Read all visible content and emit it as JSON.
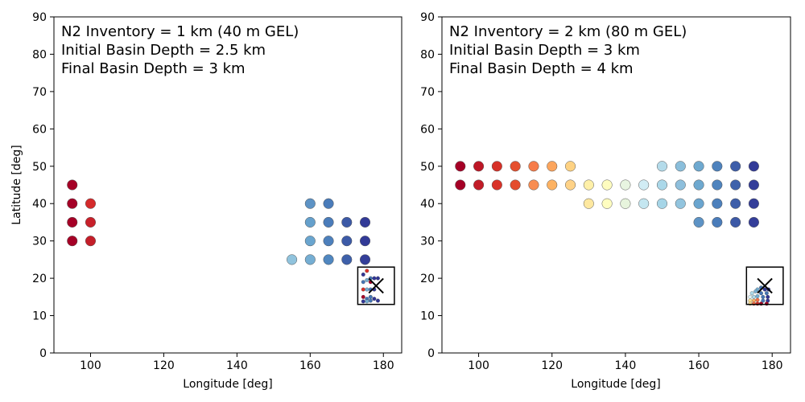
{
  "figure": {
    "title": ""
  },
  "chart_data": [
    {
      "type": "scatter",
      "title": "",
      "annotation": [
        "N2 Inventory = 1 km (40 m GEL)",
        "Initial Basin Depth = 2.5 km",
        "Final Basin Depth = 3 km"
      ],
      "xlabel": "Longitude [deg]",
      "ylabel": "Latitude [deg]",
      "xlim": [
        90,
        185
      ],
      "ylim": [
        0,
        90
      ],
      "xticks": [
        100,
        120,
        140,
        160,
        180
      ],
      "yticks": [
        0,
        10,
        20,
        30,
        40,
        50,
        60,
        70,
        80,
        90
      ],
      "marker_x": {
        "x": 178,
        "y": 18
      },
      "inset_box": {
        "x0": 173,
        "x1": 183,
        "y0": 13,
        "y1": 23
      },
      "points": [
        {
          "x": 95,
          "y": 45,
          "c": "#a50026"
        },
        {
          "x": 95,
          "y": 40,
          "c": "#a50026"
        },
        {
          "x": 95,
          "y": 35,
          "c": "#a50026"
        },
        {
          "x": 95,
          "y": 30,
          "c": "#a50026"
        },
        {
          "x": 100,
          "y": 40,
          "c": "#d42a2b"
        },
        {
          "x": 100,
          "y": 35,
          "c": "#c8202a"
        },
        {
          "x": 100,
          "y": 30,
          "c": "#c41e29"
        },
        {
          "x": 155,
          "y": 25,
          "c": "#90c3dd"
        },
        {
          "x": 160,
          "y": 40,
          "c": "#5d93c5"
        },
        {
          "x": 160,
          "y": 35,
          "c": "#65a0cc"
        },
        {
          "x": 160,
          "y": 30,
          "c": "#6aa5cf"
        },
        {
          "x": 160,
          "y": 25,
          "c": "#75aed3"
        },
        {
          "x": 165,
          "y": 40,
          "c": "#4a7cba"
        },
        {
          "x": 165,
          "y": 35,
          "c": "#4a7cba"
        },
        {
          "x": 165,
          "y": 30,
          "c": "#4d80bc"
        },
        {
          "x": 165,
          "y": 25,
          "c": "#5087c0"
        },
        {
          "x": 170,
          "y": 35,
          "c": "#3c59a6"
        },
        {
          "x": 170,
          "y": 30,
          "c": "#3c5aa7"
        },
        {
          "x": 170,
          "y": 25,
          "c": "#3e60aa"
        },
        {
          "x": 175,
          "y": 35,
          "c": "#323a97"
        },
        {
          "x": 175,
          "y": 30,
          "c": "#323a97"
        },
        {
          "x": 175,
          "y": 25,
          "c": "#343e99"
        }
      ],
      "small_points": [
        {
          "x": 174.5,
          "y": 21,
          "c": "#313695"
        },
        {
          "x": 175.5,
          "y": 22,
          "c": "#d73027"
        },
        {
          "x": 176.5,
          "y": 20,
          "c": "#4575b4"
        },
        {
          "x": 177.5,
          "y": 20,
          "c": "#313695"
        },
        {
          "x": 178.5,
          "y": 20,
          "c": "#313695"
        },
        {
          "x": 174.5,
          "y": 19,
          "c": "#4575b4"
        },
        {
          "x": 175.5,
          "y": 19.5,
          "c": "#74add1"
        },
        {
          "x": 176.5,
          "y": 19,
          "c": "#a50026"
        },
        {
          "x": 174.5,
          "y": 17,
          "c": "#d73027"
        },
        {
          "x": 175.5,
          "y": 17,
          "c": "#74add1"
        },
        {
          "x": 176.5,
          "y": 17,
          "c": "#4575b4"
        },
        {
          "x": 177.5,
          "y": 17,
          "c": "#313695"
        },
        {
          "x": 174.5,
          "y": 15,
          "c": "#a50026"
        },
        {
          "x": 175.5,
          "y": 14.5,
          "c": "#4575b4"
        },
        {
          "x": 176.5,
          "y": 15,
          "c": "#4575b4"
        },
        {
          "x": 177.5,
          "y": 14.5,
          "c": "#313695"
        },
        {
          "x": 174.5,
          "y": 13.8,
          "c": "#313695"
        },
        {
          "x": 175.5,
          "y": 13.8,
          "c": "#74add1"
        },
        {
          "x": 176.5,
          "y": 14,
          "c": "#4575b4"
        },
        {
          "x": 178.5,
          "y": 14,
          "c": "#313695"
        }
      ]
    },
    {
      "type": "scatter",
      "title": "",
      "annotation": [
        "N2 Inventory = 2 km (80 m GEL)",
        "Initial Basin Depth = 3 km",
        "Final Basin Depth = 4 km"
      ],
      "xlabel": "Longitude [deg]",
      "ylabel": "",
      "xlim": [
        90,
        185
      ],
      "ylim": [
        0,
        90
      ],
      "xticks": [
        100,
        120,
        140,
        160,
        180
      ],
      "yticks": [
        0,
        10,
        20,
        30,
        40,
        50,
        60,
        70,
        80,
        90
      ],
      "marker_x": {
        "x": 178,
        "y": 18
      },
      "inset_box": {
        "x0": 173,
        "x1": 183,
        "y0": 13,
        "y1": 23
      },
      "points": [
        {
          "x": 95,
          "y": 50,
          "c": "#a50026"
        },
        {
          "x": 100,
          "y": 50,
          "c": "#bd1726"
        },
        {
          "x": 105,
          "y": 50,
          "c": "#d73027"
        },
        {
          "x": 110,
          "y": 50,
          "c": "#e5502f"
        },
        {
          "x": 115,
          "y": 50,
          "c": "#f67c4a"
        },
        {
          "x": 120,
          "y": 50,
          "c": "#fca55d"
        },
        {
          "x": 125,
          "y": 50,
          "c": "#fed283"
        },
        {
          "x": 150,
          "y": 50,
          "c": "#b4dbea"
        },
        {
          "x": 155,
          "y": 50,
          "c": "#8abedb"
        },
        {
          "x": 160,
          "y": 50,
          "c": "#6ea9d0"
        },
        {
          "x": 165,
          "y": 50,
          "c": "#4e82bd"
        },
        {
          "x": 170,
          "y": 50,
          "c": "#3e5ea9"
        },
        {
          "x": 175,
          "y": 50,
          "c": "#323a97"
        },
        {
          "x": 95,
          "y": 45,
          "c": "#a50026"
        },
        {
          "x": 100,
          "y": 45,
          "c": "#c21c27"
        },
        {
          "x": 105,
          "y": 45,
          "c": "#d93228"
        },
        {
          "x": 110,
          "y": 45,
          "c": "#e44d2e"
        },
        {
          "x": 115,
          "y": 45,
          "c": "#f88d52"
        },
        {
          "x": 120,
          "y": 45,
          "c": "#fdb262"
        },
        {
          "x": 125,
          "y": 45,
          "c": "#fed287"
        },
        {
          "x": 130,
          "y": 45,
          "c": "#fff0a8"
        },
        {
          "x": 135,
          "y": 45,
          "c": "#fefcbf"
        },
        {
          "x": 140,
          "y": 45,
          "c": "#e8f5e1"
        },
        {
          "x": 145,
          "y": 45,
          "c": "#d1ecf4"
        },
        {
          "x": 150,
          "y": 45,
          "c": "#abd8e9"
        },
        {
          "x": 155,
          "y": 45,
          "c": "#8ebfdc"
        },
        {
          "x": 160,
          "y": 45,
          "c": "#6ea9d0"
        },
        {
          "x": 165,
          "y": 45,
          "c": "#4f84be"
        },
        {
          "x": 170,
          "y": 45,
          "c": "#3f62ab"
        },
        {
          "x": 175,
          "y": 45,
          "c": "#343e99"
        },
        {
          "x": 130,
          "y": 40,
          "c": "#fee8a0"
        },
        {
          "x": 135,
          "y": 40,
          "c": "#fffdc0"
        },
        {
          "x": 140,
          "y": 40,
          "c": "#e7f4dd"
        },
        {
          "x": 145,
          "y": 40,
          "c": "#c4e6f0"
        },
        {
          "x": 150,
          "y": 40,
          "c": "#a6d5e7"
        },
        {
          "x": 155,
          "y": 40,
          "c": "#92c4de"
        },
        {
          "x": 160,
          "y": 40,
          "c": "#6aa5cf"
        },
        {
          "x": 165,
          "y": 40,
          "c": "#4d80bc"
        },
        {
          "x": 170,
          "y": 40,
          "c": "#3e5ea9"
        },
        {
          "x": 175,
          "y": 40,
          "c": "#343e99"
        },
        {
          "x": 160,
          "y": 35,
          "c": "#5d93c5"
        },
        {
          "x": 165,
          "y": 35,
          "c": "#4a7cba"
        },
        {
          "x": 170,
          "y": 35,
          "c": "#3c59a6"
        },
        {
          "x": 175,
          "y": 35,
          "c": "#343e99"
        }
      ],
      "small_points": [
        {
          "x": 176,
          "y": 17,
          "c": "#74add1"
        },
        {
          "x": 177,
          "y": 17.5,
          "c": "#4575b4"
        },
        {
          "x": 178,
          "y": 17,
          "c": "#313695"
        },
        {
          "x": 179,
          "y": 17,
          "c": "#313695"
        },
        {
          "x": 174.5,
          "y": 16,
          "c": "#abd9e9"
        },
        {
          "x": 175.5,
          "y": 16.5,
          "c": "#74add1"
        },
        {
          "x": 177,
          "y": 16,
          "c": "#4575b4"
        },
        {
          "x": 178.5,
          "y": 16,
          "c": "#4575b4"
        },
        {
          "x": 174,
          "y": 15,
          "c": "#e0f3f8"
        },
        {
          "x": 175,
          "y": 15,
          "c": "#abd9e9"
        },
        {
          "x": 176,
          "y": 15.2,
          "c": "#74add1"
        },
        {
          "x": 177.5,
          "y": 15,
          "c": "#4575b4"
        },
        {
          "x": 178.8,
          "y": 15,
          "c": "#313695"
        },
        {
          "x": 174,
          "y": 14,
          "c": "#fee090"
        },
        {
          "x": 175,
          "y": 14,
          "c": "#fdae61"
        },
        {
          "x": 176,
          "y": 14.2,
          "c": "#f46d43"
        },
        {
          "x": 177.5,
          "y": 14,
          "c": "#4575b4"
        },
        {
          "x": 178.8,
          "y": 14,
          "c": "#313695"
        },
        {
          "x": 174,
          "y": 13.2,
          "c": "#fee090"
        },
        {
          "x": 175,
          "y": 13.2,
          "c": "#f46d43"
        },
        {
          "x": 176,
          "y": 13.2,
          "c": "#d73027"
        },
        {
          "x": 177,
          "y": 13.2,
          "c": "#a50026"
        },
        {
          "x": 178.5,
          "y": 13.2,
          "c": "#a50026"
        }
      ]
    }
  ]
}
